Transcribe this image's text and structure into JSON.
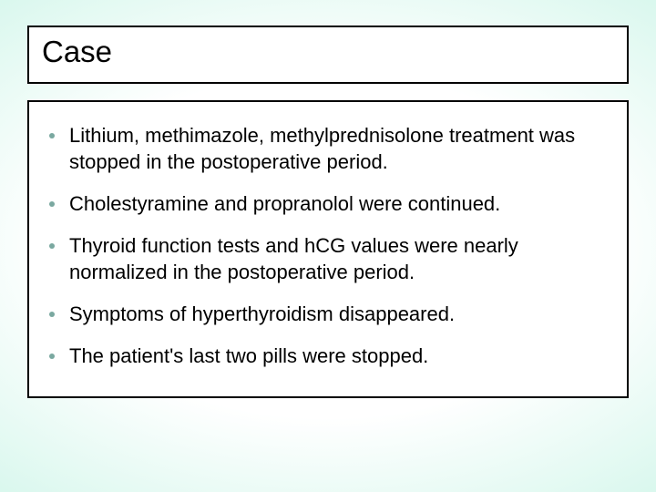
{
  "slide": {
    "background": {
      "gradient_type": "radial",
      "inner_color": "#ffffff",
      "outer_color": "#8ce8cf",
      "mid_color": "#cdf5e8"
    },
    "title_box": {
      "border_color": "#000000",
      "border_width": 2,
      "background_color": "#ffffff",
      "title": "Case",
      "title_fontsize": 33,
      "title_color": "#000000",
      "title_weight": "400"
    },
    "body_box": {
      "border_color": "#000000",
      "border_width": 2,
      "background_color": "#ffffff",
      "bullet_color": "#7aa8a0",
      "bullet_size": 6,
      "text_color": "#000000",
      "text_fontsize": 22,
      "line_height": 1.32,
      "items": [
        "Lithium, methimazole, methylprednisolone treatment was stopped in the postoperative period.",
        "Cholestyramine and propranolol were continued.",
        "Thyroid function tests and hCG values were nearly normalized in the postoperative period.",
        "Symptoms of hyperthyroidism disappeared.",
        "The patient's last two pills were stopped."
      ]
    }
  }
}
